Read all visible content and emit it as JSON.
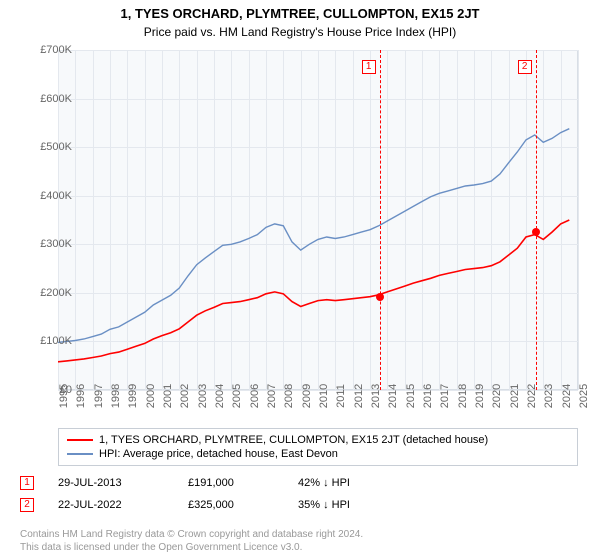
{
  "title": "1, TYES ORCHARD, PLYMTREE, CULLOMPTON, EX15 2JT",
  "subtitle": "Price paid vs. HM Land Registry's House Price Index (HPI)",
  "chart": {
    "type": "line",
    "background_color": "#f7f9fb",
    "grid_color": "#e4e8ee",
    "border_color": "#d8dee5",
    "x_axis": {
      "min": 1995,
      "max": 2025,
      "tick_step": 1,
      "ticks": [
        1995,
        1996,
        1997,
        1998,
        1999,
        2000,
        2001,
        2002,
        2003,
        2004,
        2005,
        2006,
        2007,
        2008,
        2009,
        2010,
        2011,
        2012,
        2013,
        2014,
        2015,
        2016,
        2017,
        2018,
        2019,
        2020,
        2021,
        2022,
        2023,
        2024,
        2025
      ],
      "label_fontsize": 11,
      "label_color": "#666666"
    },
    "y_axis": {
      "min": 0,
      "max": 700,
      "tick_step": 100,
      "tick_labels": [
        "£0",
        "£100K",
        "£200K",
        "£300K",
        "£400K",
        "£500K",
        "£600K",
        "£700K"
      ],
      "label_fontsize": 11,
      "label_color": "#666666"
    },
    "series": [
      {
        "id": "hpi",
        "label": "HPI: Average price, detached house, East Devon",
        "color": "#6a8fc4",
        "line_width": 1.4,
        "data": [
          [
            1995,
            98
          ],
          [
            1995.5,
            100
          ],
          [
            1996,
            102
          ],
          [
            1996.5,
            105
          ],
          [
            1997,
            110
          ],
          [
            1997.5,
            115
          ],
          [
            1998,
            125
          ],
          [
            1998.5,
            130
          ],
          [
            1999,
            140
          ],
          [
            1999.5,
            150
          ],
          [
            2000,
            160
          ],
          [
            2000.5,
            175
          ],
          [
            2001,
            185
          ],
          [
            2001.5,
            195
          ],
          [
            2002,
            210
          ],
          [
            2002.5,
            235
          ],
          [
            2003,
            258
          ],
          [
            2003.5,
            272
          ],
          [
            2004,
            285
          ],
          [
            2004.5,
            298
          ],
          [
            2005,
            300
          ],
          [
            2005.5,
            305
          ],
          [
            2006,
            312
          ],
          [
            2006.5,
            320
          ],
          [
            2007,
            335
          ],
          [
            2007.5,
            342
          ],
          [
            2008,
            338
          ],
          [
            2008.5,
            305
          ],
          [
            2009,
            288
          ],
          [
            2009.5,
            300
          ],
          [
            2010,
            310
          ],
          [
            2010.5,
            315
          ],
          [
            2011,
            312
          ],
          [
            2011.5,
            315
          ],
          [
            2012,
            320
          ],
          [
            2012.5,
            325
          ],
          [
            2013,
            330
          ],
          [
            2013.5,
            338
          ],
          [
            2014,
            348
          ],
          [
            2014.5,
            358
          ],
          [
            2015,
            368
          ],
          [
            2015.5,
            378
          ],
          [
            2016,
            388
          ],
          [
            2016.5,
            398
          ],
          [
            2017,
            405
          ],
          [
            2017.5,
            410
          ],
          [
            2018,
            415
          ],
          [
            2018.5,
            420
          ],
          [
            2019,
            422
          ],
          [
            2019.5,
            425
          ],
          [
            2020,
            430
          ],
          [
            2020.5,
            445
          ],
          [
            2021,
            468
          ],
          [
            2021.5,
            490
          ],
          [
            2022,
            515
          ],
          [
            2022.5,
            525
          ],
          [
            2023,
            510
          ],
          [
            2023.5,
            518
          ],
          [
            2024,
            530
          ],
          [
            2024.5,
            538
          ]
        ]
      },
      {
        "id": "price_paid",
        "label": "1, TYES ORCHARD, PLYMTREE, CULLOMPTON, EX15 2JT (detached house)",
        "color": "#ff0000",
        "line_width": 1.6,
        "data": [
          [
            1995,
            58
          ],
          [
            1995.5,
            60
          ],
          [
            1996,
            62
          ],
          [
            1996.5,
            64
          ],
          [
            1997,
            67
          ],
          [
            1997.5,
            70
          ],
          [
            1998,
            75
          ],
          [
            1998.5,
            78
          ],
          [
            1999,
            84
          ],
          [
            1999.5,
            90
          ],
          [
            2000,
            96
          ],
          [
            2000.5,
            105
          ],
          [
            2001,
            112
          ],
          [
            2001.5,
            118
          ],
          [
            2002,
            126
          ],
          [
            2002.5,
            140
          ],
          [
            2003,
            154
          ],
          [
            2003.5,
            163
          ],
          [
            2004,
            170
          ],
          [
            2004.5,
            178
          ],
          [
            2005,
            180
          ],
          [
            2005.5,
            182
          ],
          [
            2006,
            186
          ],
          [
            2006.5,
            190
          ],
          [
            2007,
            198
          ],
          [
            2007.5,
            202
          ],
          [
            2008,
            198
          ],
          [
            2008.5,
            182
          ],
          [
            2009,
            172
          ],
          [
            2009.5,
            178
          ],
          [
            2010,
            184
          ],
          [
            2010.5,
            186
          ],
          [
            2011,
            184
          ],
          [
            2011.5,
            186
          ],
          [
            2012,
            188
          ],
          [
            2012.5,
            190
          ],
          [
            2013,
            192
          ],
          [
            2013.5,
            196
          ],
          [
            2014,
            202
          ],
          [
            2014.5,
            208
          ],
          [
            2015,
            214
          ],
          [
            2015.5,
            220
          ],
          [
            2016,
            225
          ],
          [
            2016.5,
            230
          ],
          [
            2017,
            236
          ],
          [
            2017.5,
            240
          ],
          [
            2018,
            244
          ],
          [
            2018.5,
            248
          ],
          [
            2019,
            250
          ],
          [
            2019.5,
            252
          ],
          [
            2020,
            256
          ],
          [
            2020.5,
            264
          ],
          [
            2021,
            278
          ],
          [
            2021.5,
            292
          ],
          [
            2022,
            315
          ],
          [
            2022.5,
            320
          ],
          [
            2023,
            310
          ],
          [
            2023.5,
            325
          ],
          [
            2024,
            342
          ],
          [
            2024.5,
            350
          ]
        ]
      }
    ],
    "markers": [
      {
        "id": "1",
        "x": 2013.56,
        "date": "29-JUL-2013",
        "price": "£191,000",
        "diff": "42% ↓ HPI",
        "dot_y": 191
      },
      {
        "id": "2",
        "x": 2022.56,
        "date": "22-JUL-2022",
        "price": "£325,000",
        "diff": "35% ↓ HPI",
        "dot_y": 325
      }
    ]
  },
  "legend": {
    "border_color": "#c8ced6",
    "fontsize": 11
  },
  "footer": {
    "line1": "Contains HM Land Registry data © Crown copyright and database right 2024.",
    "line2": "This data is licensed under the Open Government Licence v3.0.",
    "color": "#999999",
    "fontsize": 10
  }
}
